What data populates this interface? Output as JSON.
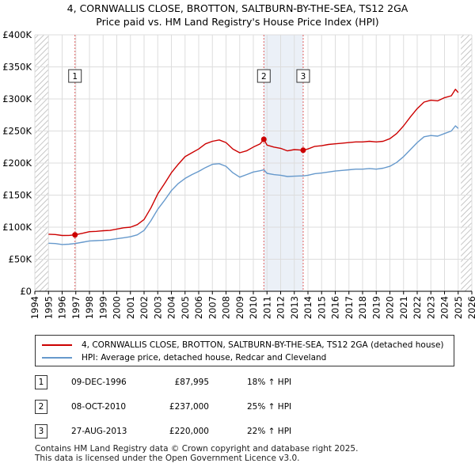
{
  "title_line1": "4, CORNWALLIS CLOSE, BROTTON, SALTBURN-BY-THE-SEA, TS12 2GA",
  "title_line2": "Price paid vs. HM Land Registry's House Price Index (HPI)",
  "colors": {
    "property": "#cc0000",
    "hpi": "#6699cc",
    "grid": "#dddddd",
    "shade": "#dde6f2",
    "hatch": "#b0b0b0",
    "vline": "#e06060"
  },
  "chart_data": {
    "type": "line",
    "x_range": [
      1994.0,
      2026.0
    ],
    "y_range": [
      0,
      400000
    ],
    "y_ticks": [
      {
        "value": 0,
        "label": "£0"
      },
      {
        "value": 50000,
        "label": "£50K"
      },
      {
        "value": 100000,
        "label": "£100K"
      },
      {
        "value": 150000,
        "label": "£150K"
      },
      {
        "value": 200000,
        "label": "£200K"
      },
      {
        "value": 250000,
        "label": "£250K"
      },
      {
        "value": 300000,
        "label": "£300K"
      },
      {
        "value": 350000,
        "label": "£350K"
      },
      {
        "value": 400000,
        "label": "£400K"
      }
    ],
    "x_ticks": [
      "1994",
      "1995",
      "1996",
      "1997",
      "1998",
      "1999",
      "2000",
      "2001",
      "2002",
      "2003",
      "2004",
      "2005",
      "2006",
      "2007",
      "2008",
      "2009",
      "2010",
      "2011",
      "2012",
      "2013",
      "2014",
      "2015",
      "2016",
      "2017",
      "2018",
      "2019",
      "2020",
      "2021",
      "2022",
      "2023",
      "2024",
      "2025",
      "2026"
    ],
    "hatched_before": 1995.0,
    "hatched_after": 2025.2,
    "grid": true,
    "series": [
      {
        "name": "4, CORNWALLIS CLOSE, BROTTON, SALTBURN-BY-THE-SEA, TS12 2GA (detached house)",
        "color": "#cc0000",
        "points": [
          [
            1995.0,
            89000
          ],
          [
            1995.5,
            88500
          ],
          [
            1996.0,
            87000
          ],
          [
            1996.5,
            87200
          ],
          [
            1996.94,
            87995
          ],
          [
            1997.5,
            90500
          ],
          [
            1998.0,
            93000
          ],
          [
            1998.5,
            93500
          ],
          [
            1999.0,
            94500
          ],
          [
            1999.5,
            95000
          ],
          [
            2000.0,
            97000
          ],
          [
            2000.5,
            99000
          ],
          [
            2001.0,
            100000
          ],
          [
            2001.5,
            104000
          ],
          [
            2002.0,
            112000
          ],
          [
            2002.5,
            130000
          ],
          [
            2003.0,
            152000
          ],
          [
            2003.5,
            168000
          ],
          [
            2004.0,
            185000
          ],
          [
            2004.5,
            198000
          ],
          [
            2005.0,
            210000
          ],
          [
            2005.5,
            216000
          ],
          [
            2006.0,
            222000
          ],
          [
            2006.5,
            230000
          ],
          [
            2007.0,
            234000
          ],
          [
            2007.5,
            236000
          ],
          [
            2008.0,
            232000
          ],
          [
            2008.5,
            222000
          ],
          [
            2009.0,
            216000
          ],
          [
            2009.5,
            219000
          ],
          [
            2010.0,
            225000
          ],
          [
            2010.5,
            230000
          ],
          [
            2010.77,
            237000
          ],
          [
            2011.0,
            228000
          ],
          [
            2011.5,
            225000
          ],
          [
            2012.0,
            223000
          ],
          [
            2012.5,
            219000
          ],
          [
            2013.0,
            221000
          ],
          [
            2013.65,
            220000
          ],
          [
            2014.0,
            222000
          ],
          [
            2014.5,
            226000
          ],
          [
            2015.0,
            227000
          ],
          [
            2015.5,
            229000
          ],
          [
            2016.0,
            230000
          ],
          [
            2016.5,
            231000
          ],
          [
            2017.0,
            232000
          ],
          [
            2017.5,
            233000
          ],
          [
            2018.0,
            233000
          ],
          [
            2018.5,
            234000
          ],
          [
            2019.0,
            233000
          ],
          [
            2019.5,
            234000
          ],
          [
            2020.0,
            238000
          ],
          [
            2020.5,
            246000
          ],
          [
            2021.0,
            258000
          ],
          [
            2021.5,
            272000
          ],
          [
            2022.0,
            285000
          ],
          [
            2022.5,
            295000
          ],
          [
            2023.0,
            298000
          ],
          [
            2023.5,
            297000
          ],
          [
            2024.0,
            302000
          ],
          [
            2024.5,
            305000
          ],
          [
            2024.8,
            315000
          ],
          [
            2025.0,
            310000
          ]
        ]
      },
      {
        "name": "HPI: Average price, detached house, Redcar and Cleveland",
        "color": "#6699cc",
        "points": [
          [
            1995.0,
            75000
          ],
          [
            1995.5,
            74500
          ],
          [
            1996.0,
            73000
          ],
          [
            1996.5,
            73500
          ],
          [
            1996.94,
            74500
          ],
          [
            1997.5,
            76500
          ],
          [
            1998.0,
            78500
          ],
          [
            1998.5,
            79000
          ],
          [
            1999.0,
            79500
          ],
          [
            1999.5,
            80500
          ],
          [
            2000.0,
            82000
          ],
          [
            2000.5,
            83500
          ],
          [
            2001.0,
            85000
          ],
          [
            2001.5,
            88000
          ],
          [
            2002.0,
            95000
          ],
          [
            2002.5,
            110000
          ],
          [
            2003.0,
            128000
          ],
          [
            2003.5,
            142000
          ],
          [
            2004.0,
            157000
          ],
          [
            2004.5,
            168000
          ],
          [
            2005.0,
            176000
          ],
          [
            2005.5,
            182000
          ],
          [
            2006.0,
            187000
          ],
          [
            2006.5,
            193000
          ],
          [
            2007.0,
            198000
          ],
          [
            2007.5,
            199000
          ],
          [
            2008.0,
            195000
          ],
          [
            2008.5,
            185000
          ],
          [
            2009.0,
            178000
          ],
          [
            2009.5,
            182000
          ],
          [
            2010.0,
            186000
          ],
          [
            2010.5,
            188000
          ],
          [
            2010.77,
            189500
          ],
          [
            2011.0,
            184000
          ],
          [
            2011.5,
            182000
          ],
          [
            2012.0,
            181000
          ],
          [
            2012.5,
            179000
          ],
          [
            2013.0,
            179500
          ],
          [
            2013.65,
            180000
          ],
          [
            2014.0,
            181000
          ],
          [
            2014.5,
            183500
          ],
          [
            2015.0,
            184500
          ],
          [
            2015.5,
            186000
          ],
          [
            2016.0,
            187500
          ],
          [
            2016.5,
            188500
          ],
          [
            2017.0,
            189500
          ],
          [
            2017.5,
            190500
          ],
          [
            2018.0,
            190500
          ],
          [
            2018.5,
            191500
          ],
          [
            2019.0,
            190500
          ],
          [
            2019.5,
            192000
          ],
          [
            2020.0,
            195000
          ],
          [
            2020.5,
            201000
          ],
          [
            2021.0,
            210000
          ],
          [
            2021.5,
            221000
          ],
          [
            2022.0,
            232000
          ],
          [
            2022.5,
            241000
          ],
          [
            2023.0,
            243000
          ],
          [
            2023.5,
            242000
          ],
          [
            2024.0,
            246000
          ],
          [
            2024.5,
            250000
          ],
          [
            2024.8,
            258000
          ],
          [
            2025.0,
            254000
          ]
        ]
      }
    ],
    "sale_markers": [
      {
        "label": "1",
        "x": 1996.94,
        "y": 87995
      },
      {
        "label": "2",
        "x": 2010.77,
        "y": 237000
      },
      {
        "label": "3",
        "x": 2013.65,
        "y": 220000
      }
    ]
  },
  "legend": {
    "property_label": "4, CORNWALLIS CLOSE, BROTTON, SALTBURN-BY-THE-SEA, TS12 2GA (detached house)",
    "hpi_label": "HPI: Average price, detached house, Redcar and Cleveland"
  },
  "sales": [
    {
      "num": "1",
      "date": "09-DEC-1996",
      "price": "£87,995",
      "hpi": "18% ↑ HPI"
    },
    {
      "num": "2",
      "date": "08-OCT-2010",
      "price": "£237,000",
      "hpi": "25% ↑ HPI"
    },
    {
      "num": "3",
      "date": "27-AUG-2013",
      "price": "£220,000",
      "hpi": "22% ↑ HPI"
    }
  ],
  "footer": {
    "line1": "Contains HM Land Registry data © Crown copyright and database right 2025.",
    "line2": "This data is licensed under the Open Government Licence v3.0."
  }
}
